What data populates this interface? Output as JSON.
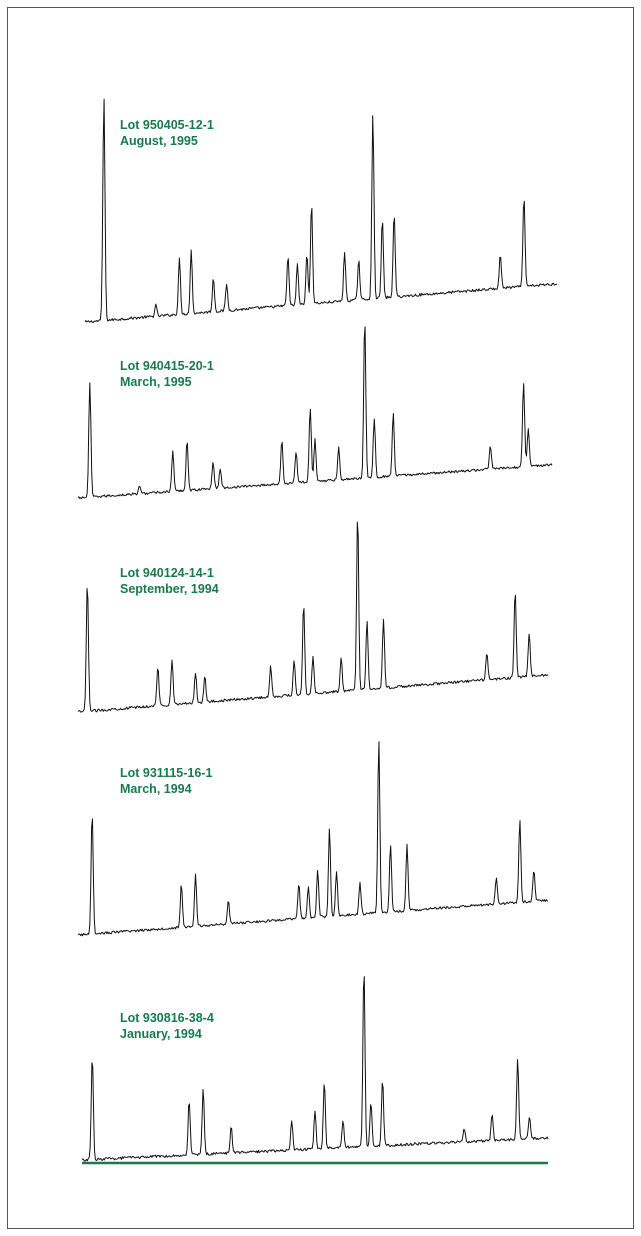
{
  "colors": {
    "label": "#1a7a4e",
    "trace": "#111111",
    "baseline_rule": "#1a7a4e",
    "border": "#555555"
  },
  "chart_data": {
    "type": "line",
    "title": "",
    "xlabel": "",
    "ylabel": "",
    "grid": false,
    "legend": "none",
    "x_range": [
      0,
      1
    ],
    "y_range": [
      0,
      1
    ],
    "series": [
      {
        "lot": "Lot 950405-12-1",
        "date": "August, 1995",
        "baseline": [
          0.0,
          0.17
        ],
        "peaks": [
          [
            0.04,
            1.0
          ],
          [
            0.15,
            0.05
          ],
          [
            0.2,
            0.25
          ],
          [
            0.225,
            0.28
          ],
          [
            0.272,
            0.15
          ],
          [
            0.3,
            0.12
          ],
          [
            0.43,
            0.22
          ],
          [
            0.45,
            0.18
          ],
          [
            0.47,
            0.22
          ],
          [
            0.48,
            0.45
          ],
          [
            0.55,
            0.22
          ],
          [
            0.58,
            0.18
          ],
          [
            0.61,
            0.82
          ],
          [
            0.63,
            0.35
          ],
          [
            0.655,
            0.37
          ],
          [
            0.88,
            0.15
          ],
          [
            0.93,
            0.4
          ]
        ]
      },
      {
        "lot": "Lot 940415-20-1",
        "date": "March, 1995",
        "baseline": [
          0.0,
          0.17
        ],
        "peaks": [
          [
            0.025,
            0.58
          ],
          [
            0.13,
            0.04
          ],
          [
            0.2,
            0.21
          ],
          [
            0.23,
            0.26
          ],
          [
            0.285,
            0.14
          ],
          [
            0.3,
            0.1
          ],
          [
            0.43,
            0.22
          ],
          [
            0.46,
            0.16
          ],
          [
            0.49,
            0.38
          ],
          [
            0.5,
            0.22
          ],
          [
            0.55,
            0.17
          ],
          [
            0.605,
            0.82
          ],
          [
            0.625,
            0.3
          ],
          [
            0.665,
            0.32
          ],
          [
            0.87,
            0.12
          ],
          [
            0.94,
            0.43
          ],
          [
            0.95,
            0.2
          ]
        ]
      },
      {
        "lot": "Lot 940124-14-1",
        "date": "September, 1994",
        "baseline": [
          0.0,
          0.17
        ],
        "peaks": [
          [
            0.02,
            0.6
          ],
          [
            0.17,
            0.18
          ],
          [
            0.2,
            0.21
          ],
          [
            0.25,
            0.14
          ],
          [
            0.27,
            0.12
          ],
          [
            0.41,
            0.14
          ],
          [
            0.46,
            0.16
          ],
          [
            0.48,
            0.42
          ],
          [
            0.5,
            0.17
          ],
          [
            0.56,
            0.15
          ],
          [
            0.595,
            0.82
          ],
          [
            0.615,
            0.32
          ],
          [
            0.65,
            0.32
          ],
          [
            0.87,
            0.12
          ],
          [
            0.93,
            0.4
          ],
          [
            0.96,
            0.2
          ]
        ]
      },
      {
        "lot": "Lot 931115-16-1",
        "date": "March, 1994",
        "baseline": [
          0.0,
          0.17
        ],
        "peaks": [
          [
            0.03,
            0.6
          ],
          [
            0.22,
            0.21
          ],
          [
            0.25,
            0.25
          ],
          [
            0.32,
            0.12
          ],
          [
            0.47,
            0.17
          ],
          [
            0.49,
            0.15
          ],
          [
            0.51,
            0.23
          ],
          [
            0.535,
            0.43
          ],
          [
            0.55,
            0.22
          ],
          [
            0.6,
            0.15
          ],
          [
            0.64,
            0.85
          ],
          [
            0.665,
            0.33
          ],
          [
            0.7,
            0.32
          ],
          [
            0.89,
            0.13
          ],
          [
            0.94,
            0.4
          ],
          [
            0.97,
            0.15
          ]
        ]
      },
      {
        "lot": "Lot 930816-38-4",
        "date": "January, 1994",
        "baseline": [
          0.0,
          0.1
        ],
        "peaks": [
          [
            0.022,
            0.47
          ],
          [
            0.23,
            0.25
          ],
          [
            0.26,
            0.3
          ],
          [
            0.32,
            0.12
          ],
          [
            0.45,
            0.13
          ],
          [
            0.5,
            0.17
          ],
          [
            0.52,
            0.3
          ],
          [
            0.56,
            0.12
          ],
          [
            0.605,
            0.82
          ],
          [
            0.62,
            0.2
          ],
          [
            0.645,
            0.3
          ],
          [
            0.82,
            0.06
          ],
          [
            0.88,
            0.12
          ],
          [
            0.935,
            0.36
          ],
          [
            0.96,
            0.1
          ]
        ]
      }
    ]
  }
}
